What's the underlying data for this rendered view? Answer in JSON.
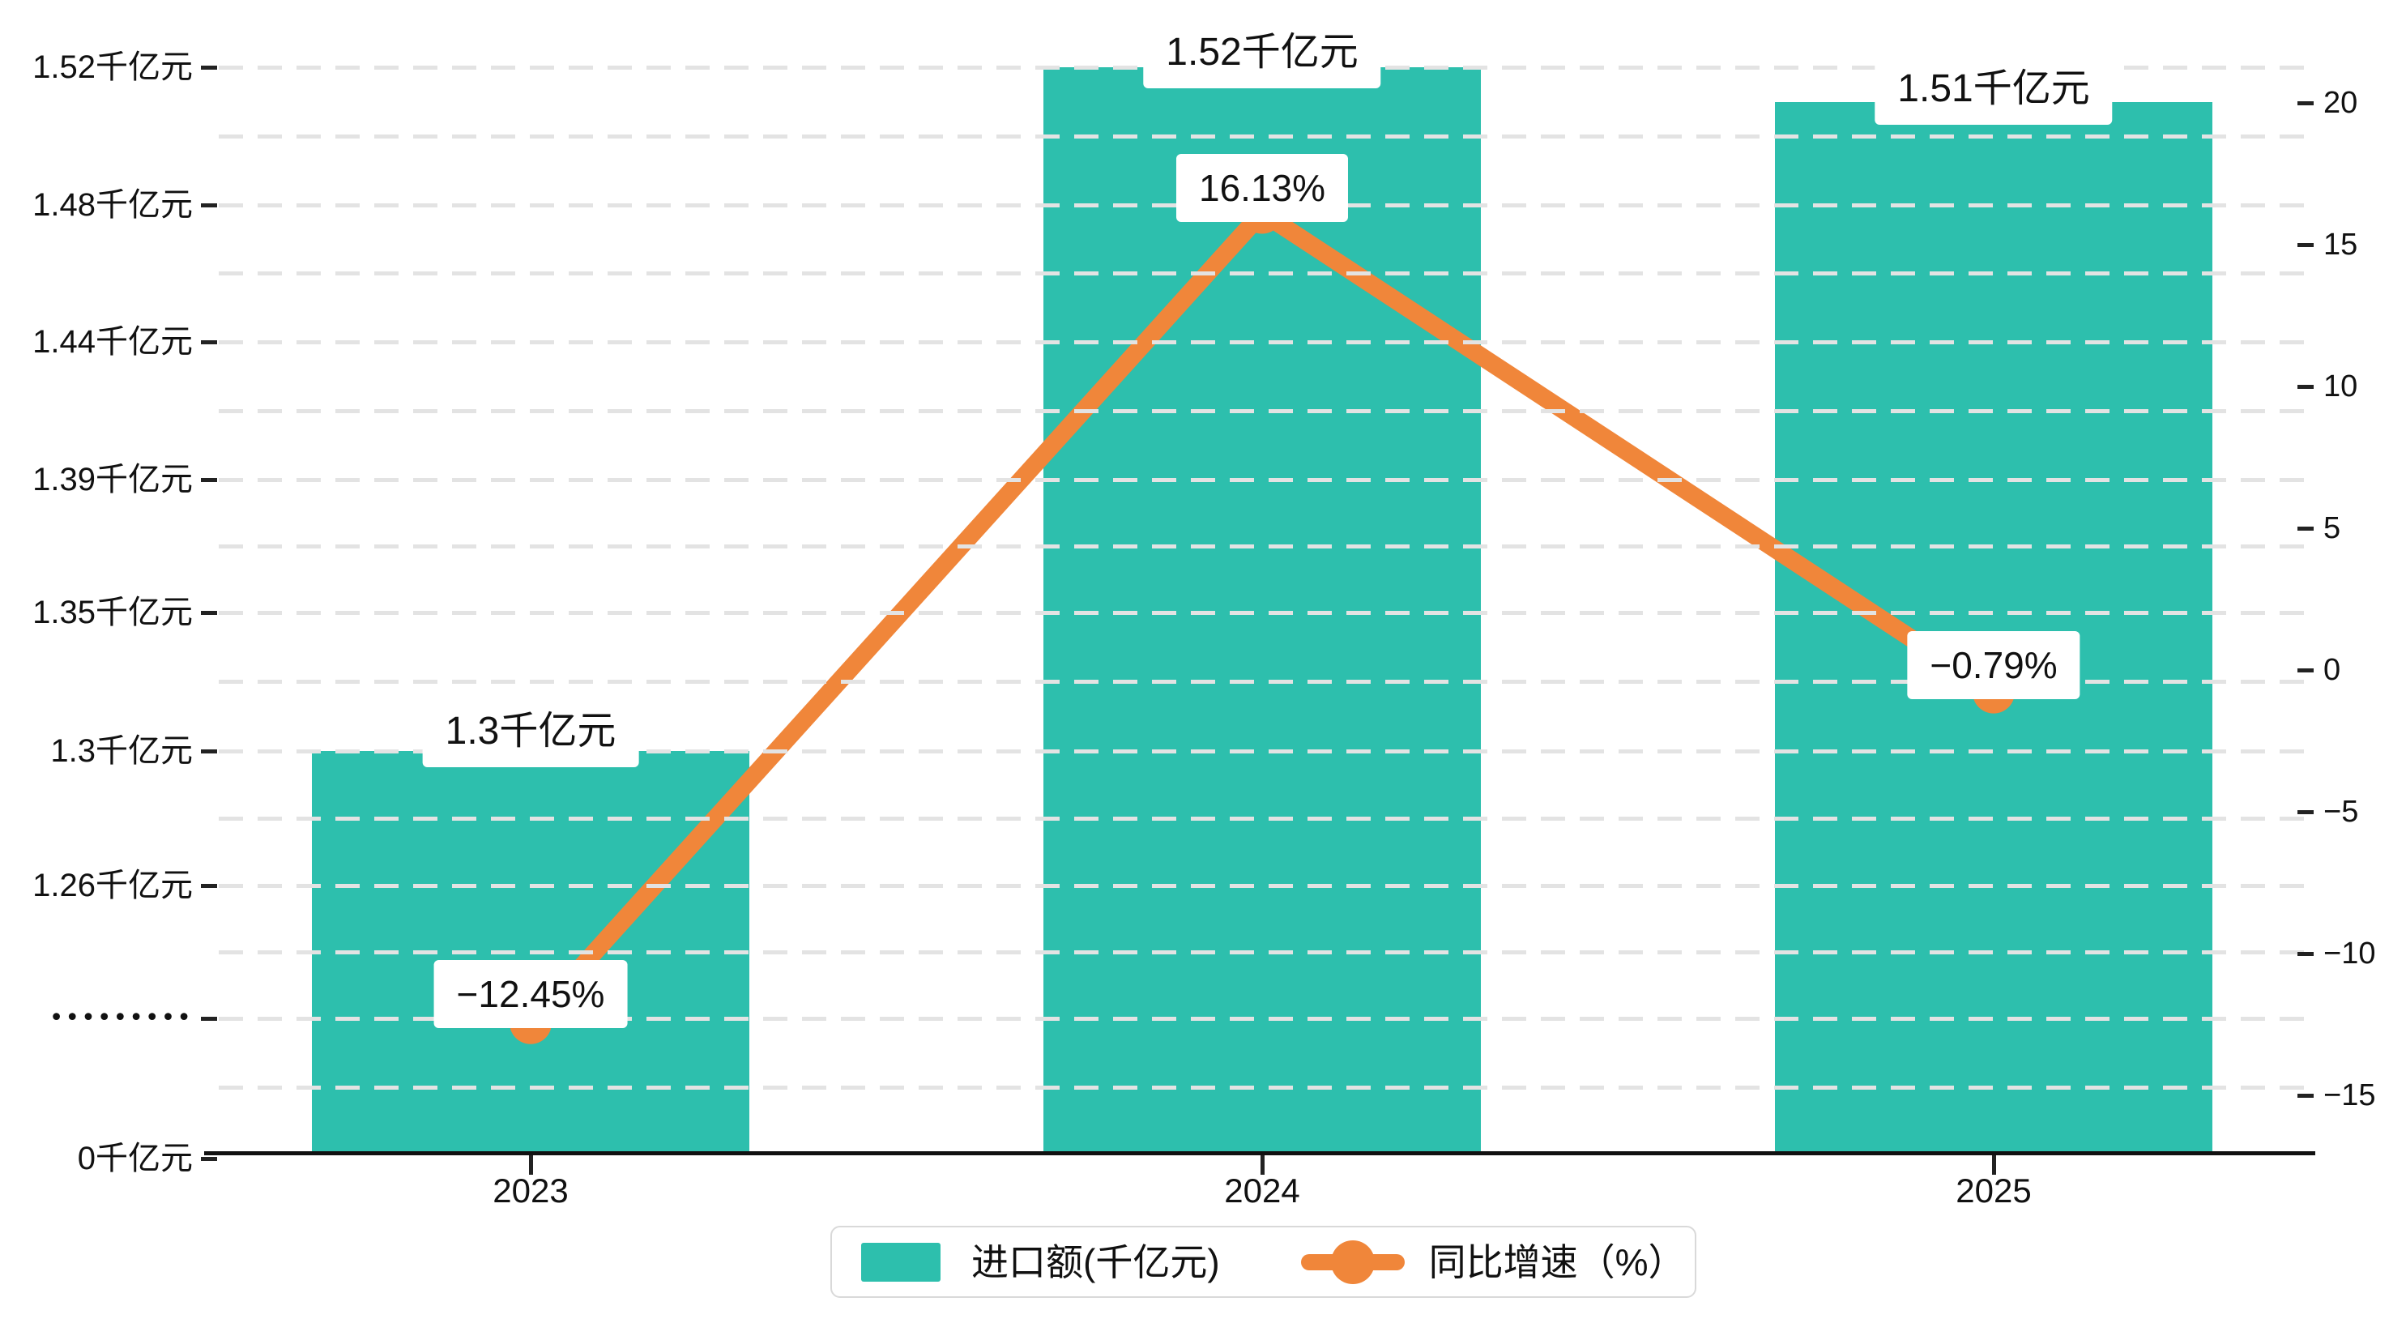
{
  "chart_data": {
    "type": "bar+line combo",
    "categories": [
      "2023",
      "2024",
      "2025"
    ],
    "series": [
      {
        "name": "进口额(千亿元)",
        "type": "bar",
        "unit": "千亿元",
        "values": [
          1.3,
          1.52,
          1.51
        ],
        "data_labels": [
          "1.3千亿元",
          "1.52千亿元",
          "1.51千亿元"
        ],
        "color": "#2DBFAD"
      },
      {
        "name": "同比增速（%）",
        "type": "line",
        "unit": "%",
        "values": [
          -12.45,
          16.13,
          -0.79
        ],
        "data_labels": [
          "−12.45%",
          "16.13%",
          "−0.79%"
        ],
        "color": "#F0863A"
      }
    ],
    "left_axis": {
      "tick_labels_bottom_to_top": [
        "0千亿元",
        "•••••••••",
        "1.26千亿元",
        "1.3千亿元",
        "1.35千亿元",
        "1.39千亿元",
        "1.44千亿元",
        "1.48千亿元",
        "1.52千亿元"
      ],
      "axis_break": true
    },
    "right_axis": {
      "tick_labels_top_to_bottom": [
        "20",
        "15",
        "10",
        "5",
        "0",
        "−5",
        "−10",
        "−15"
      ],
      "range": [
        -17.5,
        22.5
      ]
    },
    "grid": "dashed horizontal, major and minor lines",
    "legend_position": "bottom-center",
    "title": ""
  },
  "legend": {
    "items": [
      {
        "label": "进口额(千亿元)",
        "swatch": "bar",
        "color": "#2DBFAD"
      },
      {
        "label": "同比增速（%）",
        "swatch": "line-dot",
        "color": "#F0863A"
      }
    ]
  },
  "colors": {
    "bar": "#2DBFAD",
    "line": "#F0863A",
    "grid": "#E3E3E3",
    "axis": "#111111",
    "text": "#111111",
    "tooltip_bg": "#FFFFFF",
    "legend_border": "#D9D9D9",
    "background": "#FFFFFF"
  }
}
